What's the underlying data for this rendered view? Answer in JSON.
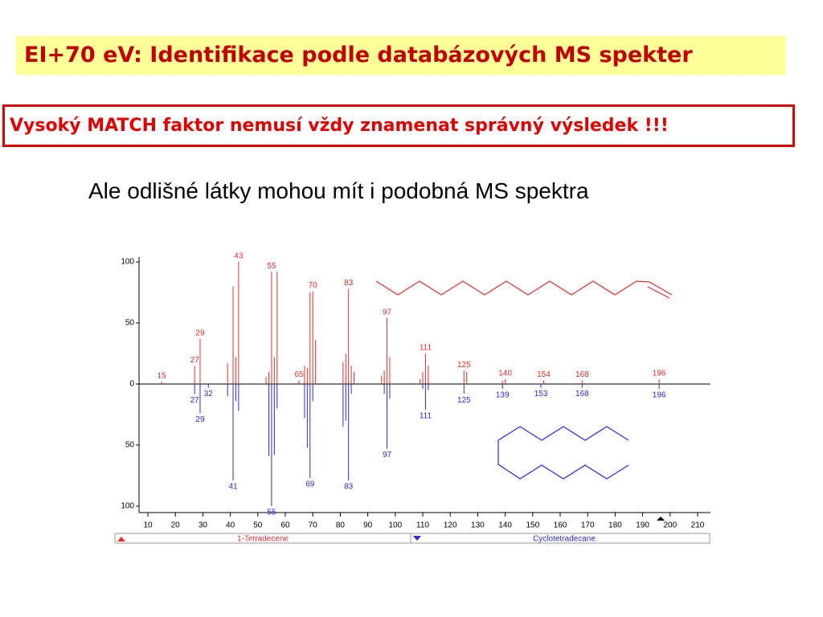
{
  "header": {
    "title": "EI+70 eV: Identifikace podle databázových MS spekter",
    "warning": "Vysoký MATCH faktor nemusí vždy znamenat správný výsledek !!!",
    "subtitle": "Ale odlišné látky mohou mít i podobná MS spektra"
  },
  "chart_data": {
    "type": "mirror-bar",
    "xlim": [
      10,
      210
    ],
    "xticks": [
      10,
      20,
      30,
      40,
      50,
      60,
      70,
      80,
      90,
      100,
      110,
      120,
      130,
      140,
      150,
      160,
      170,
      180,
      190,
      200,
      210
    ],
    "ylim": [
      -100,
      100
    ],
    "yticks": [
      100,
      50,
      0,
      {
        "value": -50,
        "label": "50"
      },
      {
        "value": -100,
        "label": "100"
      }
    ],
    "series": [
      {
        "name": "1-Tetradecene",
        "color": "#e03030",
        "x": [
          15,
          27,
          29,
          43,
          55,
          65,
          70,
          83,
          97,
          111,
          125,
          140,
          154,
          168,
          196
        ],
        "values": [
          2,
          15,
          37,
          100,
          92,
          3,
          76,
          78,
          54,
          25,
          11,
          4,
          3,
          3,
          4
        ],
        "minor_x": [
          39,
          41,
          42,
          53,
          54,
          56,
          57,
          67,
          68,
          69,
          71,
          81,
          82,
          84,
          85,
          95,
          96,
          98,
          109,
          110,
          112,
          126,
          139
        ],
        "minor_values": [
          17,
          80,
          22,
          6,
          10,
          22,
          92,
          15,
          13,
          75,
          36,
          18,
          25,
          15,
          10,
          7,
          11,
          22,
          4,
          10,
          15,
          10,
          3
        ]
      },
      {
        "name": "Cyclotetradecane",
        "color": "#2a2ae0",
        "x": [
          27,
          29,
          32,
          41,
          55,
          69,
          83,
          97,
          111,
          125,
          139,
          153,
          168,
          196
        ],
        "values": [
          -8,
          -24,
          -3,
          -79,
          -100,
          -77,
          -79,
          -53,
          -21,
          -8,
          -4,
          -3,
          -3,
          -4
        ],
        "minor_x": [
          39,
          42,
          43,
          54,
          56,
          57,
          67,
          68,
          70,
          81,
          82,
          84,
          96,
          98,
          110,
          112
        ],
        "minor_values": [
          -10,
          -14,
          -22,
          -59,
          -58,
          -20,
          -28,
          -52,
          -14,
          -35,
          -30,
          -8,
          -8,
          -12,
          -4,
          -5
        ]
      }
    ]
  }
}
